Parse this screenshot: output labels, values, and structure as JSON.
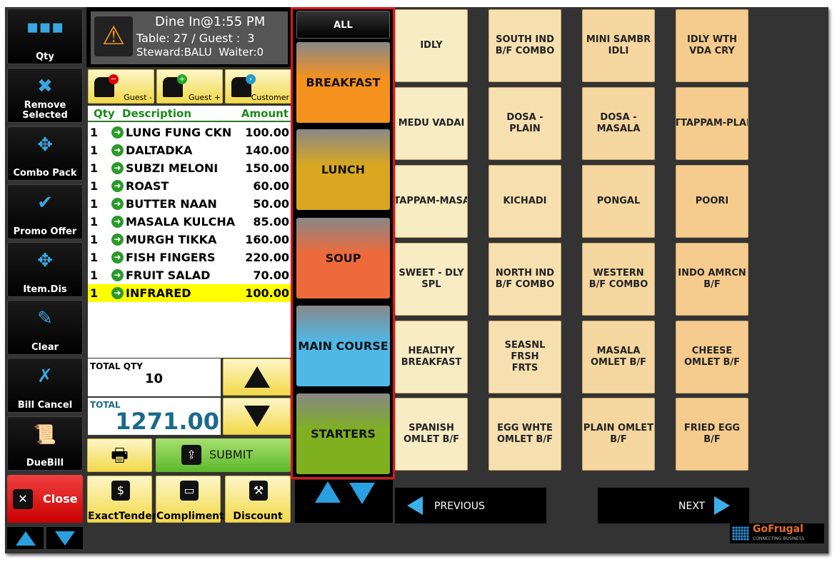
{
  "left_buttons": [
    {
      "label": "Qty",
      "icon": "qty-grid-icon"
    },
    {
      "label": "Remove Selected",
      "icon": "remove-icon"
    },
    {
      "label": "Combo Pack",
      "icon": "combo-icon"
    },
    {
      "label": "Promo Offer",
      "icon": "promo-icon"
    },
    {
      "label": "Item.Dis",
      "icon": "item-discount-icon"
    },
    {
      "label": "Clear",
      "icon": "clear-icon"
    },
    {
      "label": "Bill Cancel",
      "icon": "bill-cancel-icon"
    },
    {
      "label": "DueBill",
      "icon": "duebill-icon"
    }
  ],
  "close_label": "Close",
  "header": {
    "line1": "Dine In@1:55 PM",
    "line2": "Table: 27 / Guest :  3",
    "line3": "Steward:BALU  Waiter:0"
  },
  "guest_buttons": [
    {
      "label": "Guest -"
    },
    {
      "label": "Guest +"
    },
    {
      "label": "Customer"
    }
  ],
  "table": {
    "headers": {
      "qty": "Qty",
      "desc": "Description",
      "amount": "Amount"
    },
    "rows": [
      {
        "qty": "1",
        "desc": "LUNG FUNG CKN",
        "amount": "100.00"
      },
      {
        "qty": "1",
        "desc": "DALTADKA",
        "amount": "140.00"
      },
      {
        "qty": "1",
        "desc": "SUBZI MELONI",
        "amount": "150.00"
      },
      {
        "qty": "1",
        "desc": "ROAST",
        "amount": "60.00"
      },
      {
        "qty": "1",
        "desc": "BUTTER NAAN",
        "amount": "50.00"
      },
      {
        "qty": "1",
        "desc": "MASALA KULCHA",
        "amount": "85.00"
      },
      {
        "qty": "1",
        "desc": "MURGH TIKKA",
        "amount": "160.00"
      },
      {
        "qty": "1",
        "desc": "FISH FINGERS",
        "amount": "220.00"
      },
      {
        "qty": "1",
        "desc": "FRUIT SALAD",
        "amount": "70.00"
      },
      {
        "qty": "1",
        "desc": "INFRARED",
        "amount": "100.00",
        "selected": true
      }
    ]
  },
  "totals": {
    "qty_label": "TOTAL QTY",
    "qty": "10",
    "total_label": "TOTAL",
    "total": "1271.00"
  },
  "submit_label": "SUBMIT",
  "bottom_buttons": [
    {
      "label": "ExactTender",
      "icon": "money-bag-icon"
    },
    {
      "label": "Compliment",
      "icon": "card-icon"
    },
    {
      "label": "Discount",
      "icon": "stamp-icon"
    }
  ],
  "categories": {
    "all": "ALL",
    "items": [
      {
        "label": "BREAKFAST",
        "color": "#f5921e"
      },
      {
        "label": "LUNCH",
        "color": "#d9a820"
      },
      {
        "label": "SOUP",
        "color": "#ef6a3a"
      },
      {
        "label": "MAIN COURSE",
        "color": "#4fb8e6"
      },
      {
        "label": "STARTERS",
        "color": "#7fb020"
      }
    ]
  },
  "menu_items": [
    "IDLY",
    "SOUTH IND\nB/F COMBO",
    "MINI SAMBR\nIDLI",
    "IDLY WTH\nVDA CRY",
    "MEDU VADAI",
    "DOSA -\nPLAIN",
    "DOSA -\nMASALA",
    "UTTAPPAM-PLAIN",
    "UTTAPPAM-MASALA",
    "KICHADI",
    "PONGAL",
    "POORI",
    "SWEET - DLY\nSPL",
    "NORTH IND\nB/F COMBO",
    "WESTERN\nB/F COMBO",
    "INDO AMRCN\nB/F",
    "HEALTHY\nBREAKFAST",
    "SEASNL FRSH\nFRTS",
    "MASALA\nOMLET B/F",
    "CHEESE\nOMLET B/F",
    "SPANISH\nOMLET B/F",
    "EGG WHTE\nOMLET B/F",
    "PLAIN OMLET\nB/F",
    "FRIED EGG\nB/F"
  ],
  "nav": {
    "previous": "PREVIOUS",
    "next": "NEXT"
  },
  "logo": {
    "name": "GoFrugal",
    "tagline": "CONNECTING BUSINESS"
  }
}
